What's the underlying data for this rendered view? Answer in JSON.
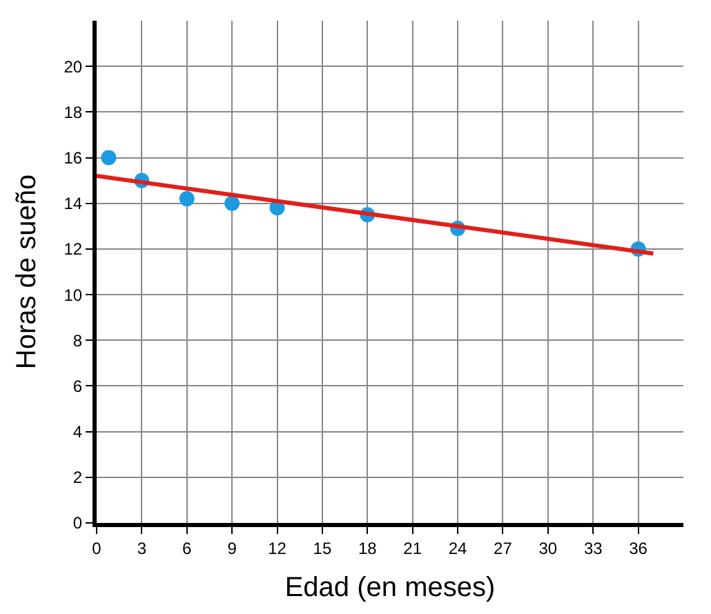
{
  "chart_data": {
    "type": "scatter",
    "xlabel": "Edad (en meses)",
    "ylabel": "Horas de sueño",
    "xlim": [
      0,
      39
    ],
    "ylim": [
      0,
      22
    ],
    "xticks": [
      0,
      3,
      6,
      9,
      12,
      15,
      18,
      21,
      24,
      27,
      30,
      33,
      36
    ],
    "yticks": [
      0,
      2,
      4,
      6,
      8,
      10,
      12,
      14,
      16,
      18,
      20
    ],
    "grid": true,
    "marker": "circle",
    "series": [
      {
        "color": "#1e9be0",
        "x": [
          0.8,
          3,
          6,
          9,
          12,
          18,
          24,
          36
        ],
        "values": [
          16,
          15,
          14.2,
          14,
          13.8,
          13.5,
          12.9,
          12
        ]
      },
      {
        "type": "line",
        "color": "#e0201b",
        "marker": "none",
        "x": [
          0,
          37
        ],
        "values": [
          15.2,
          11.8
        ]
      }
    ]
  }
}
